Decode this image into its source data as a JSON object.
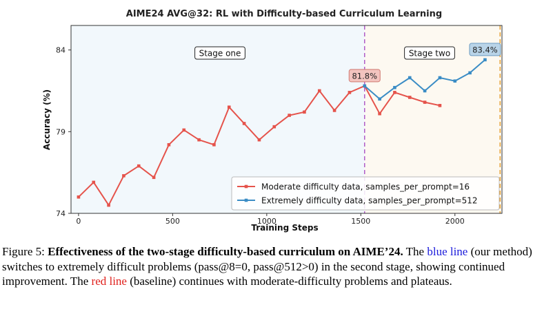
{
  "chart_data": {
    "type": "line",
    "title": "AIME24 AVG@32: RL with Difficulty-based Curriculum Learning",
    "xlabel": "Training Steps",
    "ylabel": "Accuracy (%)",
    "xlim": [
      -40,
      2250
    ],
    "ylim": [
      74,
      85.5
    ],
    "xticks": [
      0,
      500,
      1000,
      1500,
      2000
    ],
    "yticks": [
      74,
      79,
      84
    ],
    "grid": false,
    "legend_position": "lower-right",
    "stage_boundary_x": 1520,
    "stage_two_end_x": 2240,
    "stage_labels": [
      "Stage one",
      "Stage two"
    ],
    "series": [
      {
        "name": "Moderate difficulty data, samples_per_prompt=16",
        "color": "#e5534b",
        "x": [
          0,
          80,
          160,
          240,
          320,
          400,
          480,
          560,
          640,
          720,
          800,
          880,
          960,
          1040,
          1120,
          1200,
          1280,
          1360,
          1440,
          1520,
          1600,
          1680,
          1760,
          1840,
          1920
        ],
        "y": [
          75.0,
          75.9,
          74.5,
          76.3,
          76.9,
          76.2,
          78.2,
          79.1,
          78.5,
          78.2,
          80.5,
          79.5,
          78.5,
          79.3,
          80.0,
          80.2,
          81.5,
          80.3,
          81.4,
          81.8,
          80.1,
          81.4,
          81.1,
          80.8,
          80.6
        ]
      },
      {
        "name": "Extremely difficulty data, samples_per_prompt=512",
        "color": "#3a8cc5",
        "x": [
          1520,
          1600,
          1680,
          1760,
          1840,
          1920,
          2000,
          2080,
          2160
        ],
        "y": [
          81.8,
          81.0,
          81.7,
          82.3,
          81.5,
          82.3,
          82.1,
          82.6,
          83.4
        ]
      }
    ],
    "annotations": [
      {
        "text": "81.8%",
        "x": 1520,
        "y": 81.8
      },
      {
        "text": "83.4%",
        "x": 2160,
        "y": 83.4
      }
    ]
  },
  "caption": {
    "label": "Figure 5:",
    "bold_title": "Effectiveness of the two-stage difficulty-based curriculum on AIME’24.",
    "part1": " The ",
    "blue_phrase": "blue line",
    "part2": " (our method) switches to extremely difficult problems (pass@8=0, pass@512>0) in the second stage, showing continued improvement. The ",
    "red_phrase": "red line",
    "part3": " (baseline) continues with moderate-difficulty problems and plateaus."
  }
}
